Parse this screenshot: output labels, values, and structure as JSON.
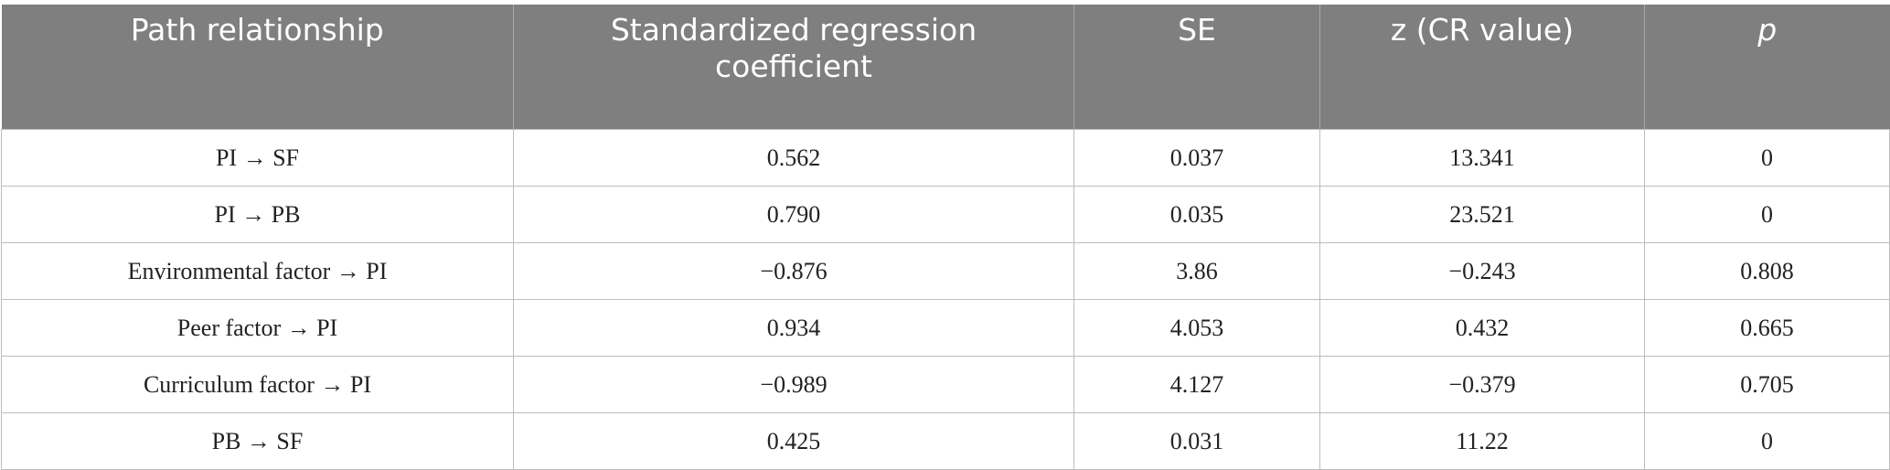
{
  "table": {
    "header": [
      "Path relationship",
      "Standardized regression coefficient",
      "SE",
      "z (CR value)",
      "p"
    ],
    "rows": [
      [
        "PI → SF",
        "0.562",
        "0.037",
        "13.341",
        "0"
      ],
      [
        "PI → PB",
        "0.790",
        "0.035",
        "23.521",
        "0"
      ],
      [
        "Environmental factor → PI",
        "−0.876",
        "3.86",
        "−0.243",
        "0.808"
      ],
      [
        "Peer factor → PI",
        "0.934",
        "4.053",
        "0.432",
        "0.665"
      ],
      [
        "Curriculum factor → PI",
        "−0.989",
        "4.127",
        "−0.379",
        "0.705"
      ],
      [
        "PB → SF",
        "0.425",
        "0.031",
        "11.22",
        "0"
      ]
    ]
  }
}
